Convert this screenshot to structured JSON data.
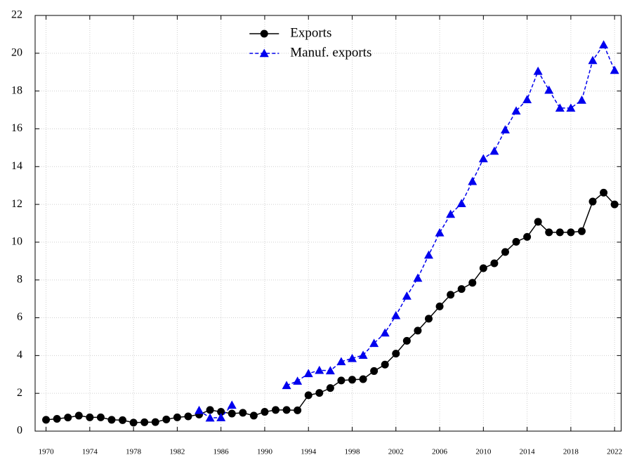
{
  "chart_data": {
    "type": "line",
    "x": [
      1970,
      1971,
      1972,
      1973,
      1974,
      1975,
      1976,
      1977,
      1978,
      1979,
      1980,
      1981,
      1982,
      1983,
      1984,
      1985,
      1986,
      1987,
      1988,
      1989,
      1990,
      1991,
      1992,
      1993,
      1994,
      1995,
      1996,
      1997,
      1998,
      1999,
      2000,
      2001,
      2002,
      2003,
      2004,
      2005,
      2006,
      2007,
      2008,
      2009,
      2010,
      2011,
      2012,
      2013,
      2014,
      2015,
      2016,
      2017,
      2018,
      2019,
      2020,
      2021,
      2022
    ],
    "series": [
      {
        "name": "Exports",
        "color": "#000000",
        "marker": "circle",
        "dash": false,
        "values": [
          0.6,
          0.65,
          0.72,
          0.82,
          0.73,
          0.73,
          0.6,
          0.58,
          0.45,
          0.47,
          0.48,
          0.62,
          0.73,
          0.78,
          0.88,
          1.12,
          1.02,
          0.93,
          0.97,
          0.82,
          1.02,
          1.12,
          1.12,
          1.1,
          1.9,
          2.02,
          2.28,
          2.68,
          2.72,
          2.75,
          3.18,
          3.52,
          4.1,
          4.78,
          5.32,
          5.95,
          6.6,
          7.22,
          7.52,
          7.85,
          8.62,
          8.88,
          9.48,
          10.02,
          10.28,
          11.08,
          10.52,
          10.52,
          10.52,
          10.58,
          12.15,
          12.62,
          12.0
        ]
      },
      {
        "name": "Manuf. exports",
        "color": "#0000ee",
        "marker": "triangle",
        "dash": true,
        "values": [
          null,
          null,
          null,
          null,
          null,
          null,
          null,
          null,
          null,
          null,
          null,
          null,
          null,
          null,
          1.1,
          0.7,
          0.72,
          1.38,
          null,
          null,
          null,
          null,
          2.42,
          2.65,
          3.05,
          3.22,
          3.2,
          3.68,
          3.85,
          4.02,
          4.65,
          5.2,
          6.12,
          7.15,
          8.1,
          9.32,
          10.5,
          11.48,
          12.05,
          13.22,
          14.42,
          14.82,
          15.95,
          16.95,
          17.55,
          19.05,
          18.05,
          17.1,
          17.1,
          17.52,
          19.62,
          20.45,
          19.1
        ]
      }
    ],
    "xlim": [
      1969,
      2022.6
    ],
    "xticks": [
      1970,
      1974,
      1978,
      1982,
      1986,
      1990,
      1994,
      1998,
      2002,
      2006,
      2010,
      2014,
      2018,
      2022
    ],
    "ylim": [
      0,
      22
    ],
    "yticks": [
      0,
      2,
      4,
      6,
      8,
      10,
      12,
      14,
      16,
      18,
      20,
      22
    ],
    "grid": true,
    "legend": "top"
  }
}
